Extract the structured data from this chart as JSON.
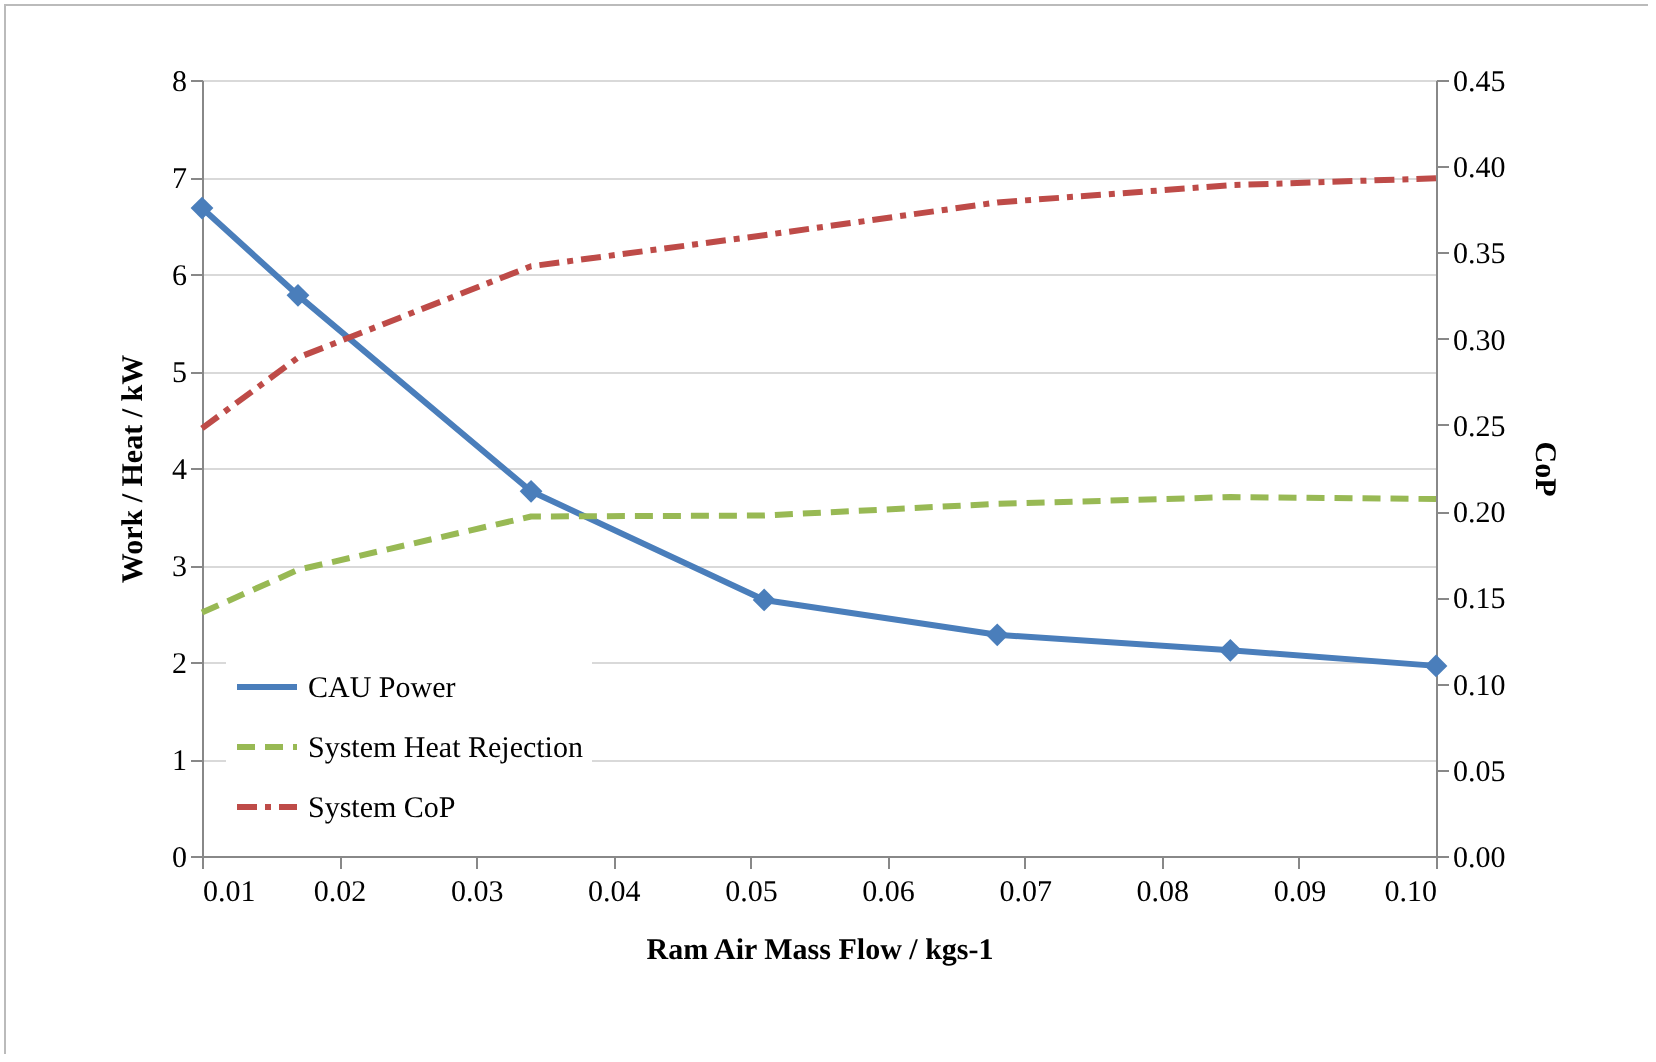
{
  "chart_data": {
    "type": "line",
    "xlabel": "Ram Air Mass Flow / kgs-1",
    "ylabel": "Work / Heat / kW",
    "y2label": "CoP",
    "x": [
      0.01,
      0.017,
      0.034,
      0.051,
      0.068,
      0.085,
      0.1
    ],
    "series": [
      {
        "name": "CAU Power",
        "color": "#4a7ebb",
        "marker": "diamond",
        "line_style": "solid",
        "values": [
          6.68,
          5.78,
          3.76,
          2.64,
          2.28,
          2.12,
          1.96
        ]
      },
      {
        "name": "System Heat Rejection",
        "color": "#98b954",
        "marker": "none",
        "line_style": "dashed",
        "values": [
          2.51,
          2.95,
          3.5,
          3.51,
          3.63,
          3.7,
          3.68
        ]
      },
      {
        "name": "System CoP",
        "color": "#be4b48",
        "marker": "none",
        "line_style": "dashdot",
        "axis": "y2",
        "values": [
          0.248,
          0.289,
          0.342,
          0.36,
          0.379,
          0.389,
          0.393
        ]
      }
    ],
    "xlim": [
      0.01,
      0.1
    ],
    "xticks": [
      0.01,
      0.02,
      0.03,
      0.04,
      0.05,
      0.06,
      0.07,
      0.08,
      0.09,
      {
        "value": 0.1,
        "label": "0.10"
      }
    ],
    "ylim": [
      0,
      8
    ],
    "yticks": [
      0,
      1,
      2,
      3,
      4,
      5,
      6,
      7,
      8
    ],
    "y2lim": [
      0,
      0.45
    ],
    "y2ticks": [
      {
        "value": 0,
        "label": "0.00"
      },
      0.05,
      {
        "value": 0.1,
        "label": "0.10"
      },
      0.15,
      {
        "value": 0.2,
        "label": "0.20"
      },
      0.25,
      {
        "value": 0.3,
        "label": "0.30"
      },
      0.35,
      {
        "value": 0.4,
        "label": "0.40"
      },
      0.45
    ],
    "grid": "y",
    "legend": "bottom left"
  }
}
